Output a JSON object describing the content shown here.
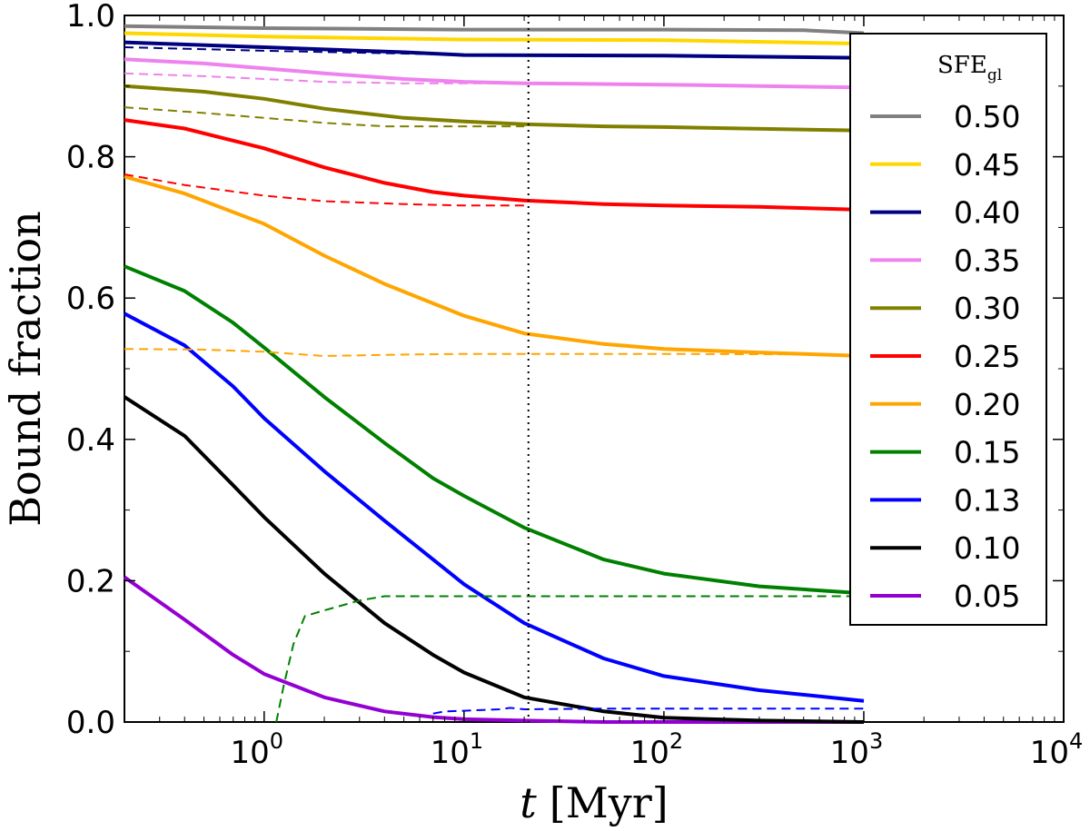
{
  "chart_data": {
    "type": "line",
    "xscale": "log",
    "xlim": [
      0.2,
      10000
    ],
    "ylim": [
      0.0,
      1.0
    ],
    "xlabel": "t",
    "xlabel_unit": "[Myr]",
    "ylabel": "Bound fraction",
    "x_ticks": [
      {
        "value": 1,
        "base": "10",
        "exp": "0"
      },
      {
        "value": 10,
        "base": "10",
        "exp": "1"
      },
      {
        "value": 100,
        "base": "10",
        "exp": "2"
      },
      {
        "value": 1000,
        "base": "10",
        "exp": "3"
      },
      {
        "value": 10000,
        "base": "10",
        "exp": "4"
      }
    ],
    "y_ticks": [
      {
        "value": 0.0,
        "label": "0.0"
      },
      {
        "value": 0.2,
        "label": "0.2"
      },
      {
        "value": 0.4,
        "label": "0.4"
      },
      {
        "value": 0.6,
        "label": "0.6"
      },
      {
        "value": 0.8,
        "label": "0.8"
      },
      {
        "value": 1.0,
        "label": "1.0"
      }
    ],
    "vline": {
      "x": 21,
      "style": "dotted"
    },
    "legend": {
      "title_main": "SFE",
      "title_sub": "gl",
      "location": "right"
    },
    "series": [
      {
        "name": "0.50",
        "color": "#808080",
        "solid": {
          "x": [
            0.2,
            1,
            10,
            100,
            500,
            1000
          ],
          "y": [
            0.985,
            0.982,
            0.98,
            0.98,
            0.979,
            0.975
          ]
        },
        "dashed": null
      },
      {
        "name": "0.45",
        "color": "#FFD700",
        "solid": {
          "x": [
            0.2,
            1,
            10,
            100,
            1000
          ],
          "y": [
            0.975,
            0.97,
            0.966,
            0.965,
            0.96
          ]
        },
        "dashed": null
      },
      {
        "name": "0.40",
        "color": "#000080",
        "solid": {
          "x": [
            0.2,
            1,
            5,
            10,
            100,
            1000
          ],
          "y": [
            0.962,
            0.955,
            0.948,
            0.944,
            0.943,
            0.94
          ]
        },
        "dashed": {
          "x": [
            0.2,
            1,
            5,
            10,
            20
          ],
          "y": [
            0.955,
            0.95,
            0.946,
            0.944,
            0.943
          ]
        }
      },
      {
        "name": "0.35",
        "color": "#EE82EE",
        "solid": {
          "x": [
            0.2,
            0.5,
            1,
            2,
            5,
            10,
            20,
            100,
            1000
          ],
          "y": [
            0.938,
            0.932,
            0.925,
            0.918,
            0.91,
            0.906,
            0.904,
            0.902,
            0.898
          ]
        },
        "dashed": {
          "x": [
            0.2,
            0.5,
            1,
            2,
            5,
            10,
            20
          ],
          "y": [
            0.918,
            0.914,
            0.91,
            0.906,
            0.904,
            0.904,
            0.904
          ]
        }
      },
      {
        "name": "0.30",
        "color": "#808000",
        "solid": {
          "x": [
            0.2,
            0.5,
            1,
            2,
            5,
            10,
            20,
            50,
            100,
            1000
          ],
          "y": [
            0.9,
            0.892,
            0.882,
            0.868,
            0.855,
            0.85,
            0.846,
            0.843,
            0.842,
            0.837
          ]
        },
        "dashed": {
          "x": [
            0.2,
            0.5,
            1,
            2,
            4,
            10,
            20
          ],
          "y": [
            0.87,
            0.862,
            0.855,
            0.848,
            0.843,
            0.843,
            0.843
          ]
        }
      },
      {
        "name": "0.25",
        "color": "#FF0000",
        "solid": {
          "x": [
            0.2,
            0.4,
            1,
            2,
            4,
            7,
            10,
            20,
            50,
            100,
            300,
            1000
          ],
          "y": [
            0.852,
            0.84,
            0.812,
            0.785,
            0.763,
            0.75,
            0.745,
            0.738,
            0.733,
            0.731,
            0.729,
            0.725
          ]
        },
        "dashed": {
          "x": [
            0.2,
            0.4,
            1,
            2,
            5,
            10,
            20
          ],
          "y": [
            0.775,
            0.76,
            0.745,
            0.737,
            0.733,
            0.731,
            0.731
          ]
        }
      },
      {
        "name": "0.20",
        "color": "#FFA500",
        "solid": {
          "x": [
            0.2,
            0.4,
            1,
            2,
            4,
            10,
            20,
            50,
            100,
            300,
            1000
          ],
          "y": [
            0.772,
            0.748,
            0.705,
            0.66,
            0.62,
            0.575,
            0.55,
            0.535,
            0.528,
            0.523,
            0.518
          ]
        },
        "dashed": {
          "x": [
            0.2,
            0.5,
            1,
            2,
            5,
            10,
            50,
            100,
            1000
          ],
          "y": [
            0.528,
            0.527,
            0.524,
            0.518,
            0.52,
            0.521,
            0.521,
            0.521,
            0.52
          ]
        }
      },
      {
        "name": "0.15",
        "color": "#008000",
        "solid": {
          "x": [
            0.2,
            0.4,
            0.7,
            1,
            2,
            4,
            7,
            10,
            20,
            50,
            100,
            300,
            1000
          ],
          "y": [
            0.645,
            0.61,
            0.565,
            0.53,
            0.46,
            0.395,
            0.345,
            0.32,
            0.275,
            0.23,
            0.21,
            0.192,
            0.182
          ]
        },
        "dashed": {
          "x": [
            1.15,
            1.25,
            1.4,
            1.6,
            2,
            3,
            4,
            10,
            100,
            1000
          ],
          "y": [
            0.0,
            0.05,
            0.11,
            0.15,
            0.158,
            0.172,
            0.178,
            0.178,
            0.178,
            0.178
          ]
        }
      },
      {
        "name": "0.13",
        "color": "#0000FF",
        "solid": {
          "x": [
            0.2,
            0.4,
            0.7,
            1,
            2,
            4,
            10,
            20,
            50,
            100,
            300,
            1000
          ],
          "y": [
            0.578,
            0.533,
            0.475,
            0.43,
            0.355,
            0.285,
            0.195,
            0.14,
            0.09,
            0.065,
            0.045,
            0.03
          ]
        },
        "dashed": {
          "x": [
            7,
            8,
            10,
            15,
            17,
            20,
            50,
            100,
            1000
          ],
          "y": [
            0.012,
            0.015,
            0.016,
            0.018,
            0.02,
            0.018,
            0.019,
            0.019,
            0.019
          ]
        }
      },
      {
        "name": "0.10",
        "color": "#000000",
        "solid": {
          "x": [
            0.2,
            0.4,
            0.7,
            1,
            2,
            4,
            7,
            10,
            20,
            50,
            100,
            300,
            1000
          ],
          "y": [
            0.46,
            0.405,
            0.335,
            0.29,
            0.21,
            0.14,
            0.095,
            0.07,
            0.035,
            0.015,
            0.006,
            0.002,
            0.0
          ]
        },
        "dashed": null
      },
      {
        "name": "0.05",
        "color": "#9400D3",
        "solid": {
          "x": [
            0.2,
            0.4,
            0.7,
            1,
            2,
            4,
            7,
            10,
            20,
            50,
            100,
            1000
          ],
          "y": [
            0.205,
            0.145,
            0.095,
            0.068,
            0.035,
            0.015,
            0.007,
            0.004,
            0.002,
            0.0,
            0.0,
            0.0
          ]
        },
        "dashed": null
      }
    ]
  }
}
